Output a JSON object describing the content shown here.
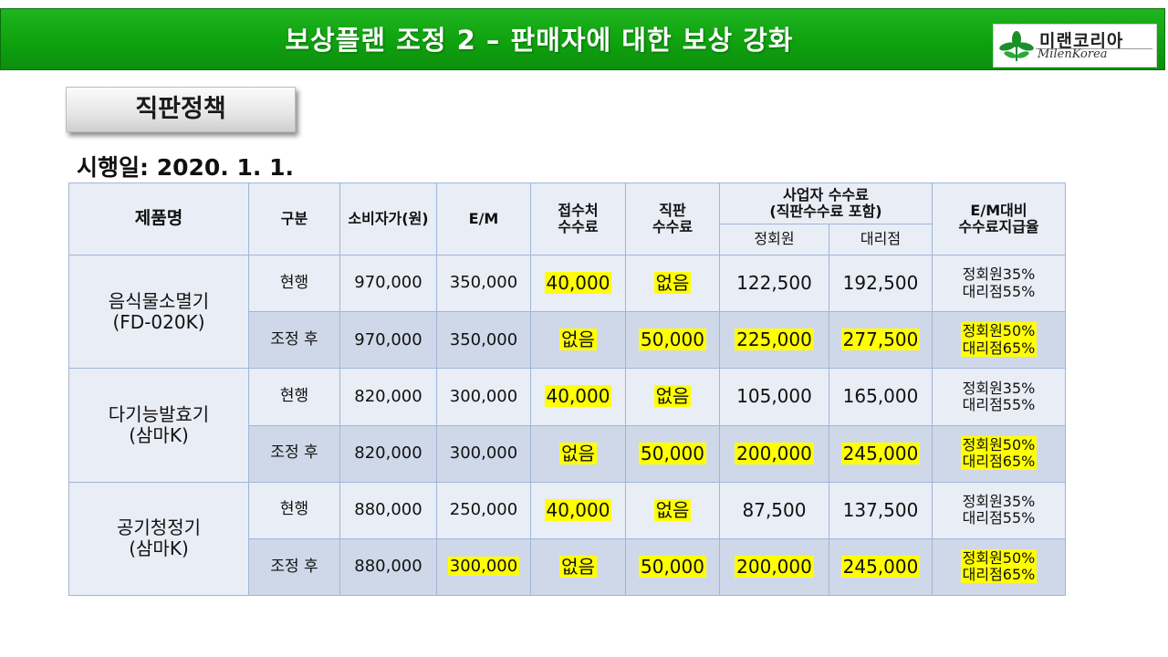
{
  "header": {
    "title": "보상플랜 조정 2 – 판매자에 대한 보상 강화"
  },
  "logo": {
    "korean": "미랜코리아",
    "english": "MilenKorea",
    "icon": "green-leaf-icon",
    "leaf_color": "#1a8f2a"
  },
  "section": {
    "title": "직판정책"
  },
  "effective_date": "시행일: 2020. 1. 1.",
  "colors": {
    "header_green": "#12a812",
    "highlight": "#ffff00",
    "table_light": "#e9edf5",
    "table_dark": "#cfd8e8",
    "border": "#9fb6d9"
  },
  "table": {
    "headers": {
      "product": "제품명",
      "category": "구분",
      "consumer_price": "소비자가(원)",
      "em": "E/M",
      "reception_fee_1": "접수처",
      "reception_fee_2": "수수료",
      "direct_fee_1": "직판",
      "direct_fee_2": "수수료",
      "business_fee_1": "사업자 수수료",
      "business_fee_2": "(직판수수료 포함)",
      "regular_member": "정회원",
      "agency": "대리점",
      "ratio_1": "E/M대비",
      "ratio_2": "수수료지급율"
    },
    "products": [
      {
        "name_1": "음식물소멸기",
        "name_2": "(FD-020K)",
        "current": {
          "label": "현행",
          "price": "970,000",
          "em": "350,000",
          "reception": "40,000",
          "direct": "없음",
          "regular": "122,500",
          "agency": "192,500",
          "rate_regular": "정회원35%",
          "rate_agency": "대리점55%"
        },
        "adjusted": {
          "label": "조정 후",
          "price": "970,000",
          "em": "350,000",
          "reception": "없음",
          "direct": "50,000",
          "regular": "225,000",
          "agency": "277,500",
          "rate_regular": "정회원50%",
          "rate_agency": "대리점65%"
        }
      },
      {
        "name_1": "다기능발효기",
        "name_2": "(삼마K)",
        "current": {
          "label": "현행",
          "price": "820,000",
          "em": "300,000",
          "reception": "40,000",
          "direct": "없음",
          "regular": "105,000",
          "agency": "165,000",
          "rate_regular": "정회원35%",
          "rate_agency": "대리점55%"
        },
        "adjusted": {
          "label": "조정 후",
          "price": "820,000",
          "em": "300,000",
          "reception": "없음",
          "direct": "50,000",
          "regular": "200,000",
          "agency": "245,000",
          "rate_regular": "정회원50%",
          "rate_agency": "대리점65%"
        }
      },
      {
        "name_1": "공기청정기",
        "name_2": "(삼마K)",
        "current": {
          "label": "현행",
          "price": "880,000",
          "em": "250,000",
          "reception": "40,000",
          "direct": "없음",
          "regular": "87,500",
          "agency": "137,500",
          "rate_regular": "정회원35%",
          "rate_agency": "대리점55%"
        },
        "adjusted": {
          "label": "조정 후",
          "price": "880,000",
          "em": "300,000",
          "reception": "없음",
          "direct": "50,000",
          "regular": "200,000",
          "agency": "245,000",
          "rate_regular": "정회원50%",
          "rate_agency": "대리점65%"
        }
      }
    ]
  }
}
